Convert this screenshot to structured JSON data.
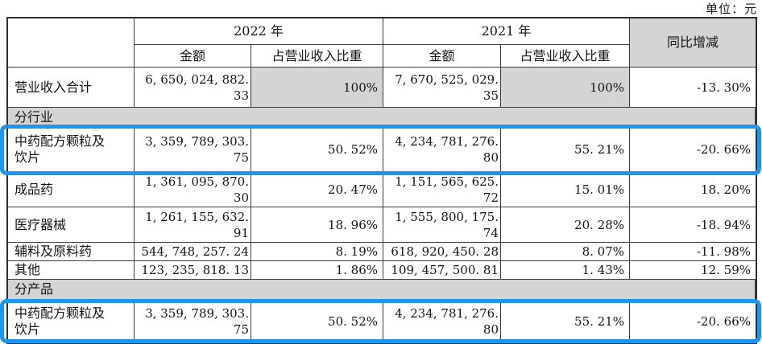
{
  "unit_label": "单位：元",
  "colors": {
    "highlight_blue": "#1e96f0",
    "section_gray": "#d4d4d4",
    "border_dark": "#2e2e2e"
  },
  "header": {
    "y2022": "2022 年",
    "y2021": "2021 年",
    "yoy": "同比增减",
    "amount": "金额",
    "share": "占营业收入比重"
  },
  "rows": [
    {
      "label": "营业收入合计",
      "a22": "6,650,024,882.33",
      "s22": "100%",
      "a21": "7,670,525,029.35",
      "s21": "100%",
      "yoy": "-13.30%"
    },
    {
      "section": "分行业"
    },
    {
      "label": "中药配方颗粒及饮片",
      "a22": "3,359,789,303.75",
      "s22": "50.52%",
      "a21": "4,234,781,276.80",
      "s21": "55.21%",
      "yoy": "-20.66%",
      "highlighted": true
    },
    {
      "label": "成品药",
      "a22": "1,361,095,870.30",
      "s22": "20.47%",
      "a21": "1,151,565,625.72",
      "s21": "15.01%",
      "yoy": "18.20%"
    },
    {
      "label": "医疗器械",
      "a22": "1,261,155,632.91",
      "s22": "18.96%",
      "a21": "1,555,800,175.74",
      "s21": "20.28%",
      "yoy": "-18.94%"
    },
    {
      "label": "辅料及原料药",
      "a22": "544,748,257.24",
      "s22": "8.19%",
      "a21": "618,920,450.28",
      "s21": "8.07%",
      "yoy": "-11.98%"
    },
    {
      "label": "其他",
      "a22": "123,235,818.13",
      "s22": "1.86%",
      "a21": "109,457,500.81",
      "s21": "1.43%",
      "yoy": "12.59%"
    },
    {
      "section": "分产品"
    },
    {
      "label": "中药配方颗粒及饮片",
      "a22": "3,359,789,303.75",
      "s22": "50.52%",
      "a21": "4,234,781,276.80",
      "s21": "55.21%",
      "yoy": "-20.66%",
      "highlighted": true
    }
  ]
}
